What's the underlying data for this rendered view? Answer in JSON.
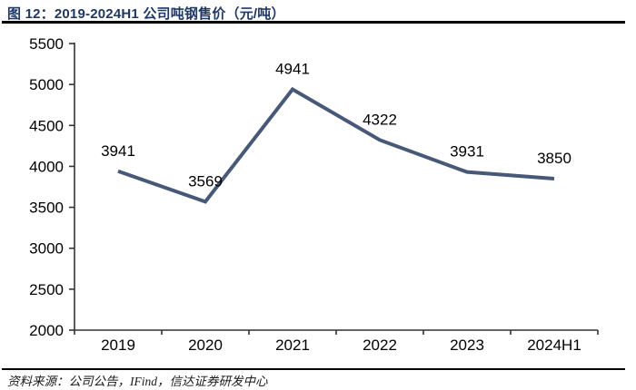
{
  "figure": {
    "title": "图 12：2019-2024H1 公司吨钢售价（元/吨）",
    "source": "资料来源：公司公告，IFind，信达证券研发中心"
  },
  "colors": {
    "title": "#1f3864",
    "series_line": "#475878",
    "axis": "#333333",
    "text": "#000000",
    "rule": "#000000"
  },
  "chart_data": {
    "type": "line",
    "title": "2019-2024H1 公司吨钢售价（元/吨）",
    "categories": [
      "2019",
      "2020",
      "2021",
      "2022",
      "2023",
      "2024H1"
    ],
    "values": [
      3941,
      3569,
      4941,
      4322,
      3931,
      3850
    ],
    "series_name": "公司吨钢售价",
    "xlabel": "",
    "ylabel": "",
    "ylim": [
      2000,
      5500
    ],
    "yticks": [
      2000,
      2500,
      3000,
      3500,
      4000,
      4500,
      5000,
      5500
    ],
    "grid": false,
    "legend": "none",
    "data_labels": true
  }
}
